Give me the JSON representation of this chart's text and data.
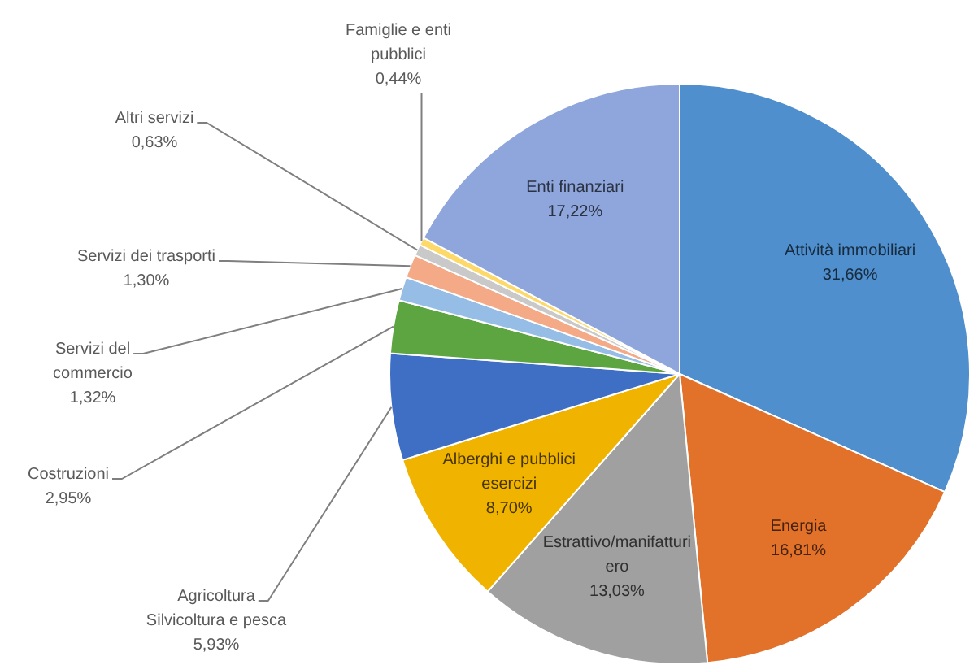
{
  "chart_data": {
    "type": "pie",
    "categories": [
      "Attività immobiliari",
      "Energia",
      "Estrattivo/manifatturiero",
      "Alberghi e pubblici esercizi",
      "Agricoltura Silvicoltura e pesca",
      "Costruzioni",
      "Servizi del commercio",
      "Servizi dei trasporti",
      "Altri servizi",
      "Famiglie e enti pubblici",
      "Enti finanziari"
    ],
    "values": [
      31.66,
      16.81,
      13.03,
      8.7,
      5.93,
      2.95,
      1.32,
      1.3,
      0.63,
      0.44,
      17.22
    ],
    "colors": [
      "#4f8fcd",
      "#e2712a",
      "#a0a0a0",
      "#f0b400",
      "#3f6fc4",
      "#5da541",
      "#95bde6",
      "#f4aa86",
      "#c9c9c9",
      "#fdd96a",
      "#8ea6dc"
    ],
    "value_labels": [
      "31,66%",
      "16,81%",
      "13,03%",
      "8,70%",
      "5,93%",
      "2,95%",
      "1,32%",
      "1,30%",
      "0,63%",
      "0,44%",
      "17,22%"
    ]
  }
}
